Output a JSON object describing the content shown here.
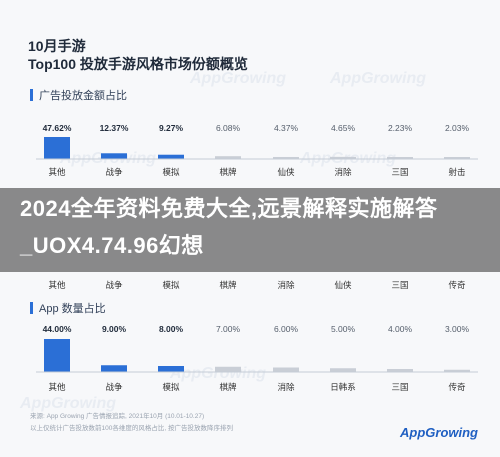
{
  "header": {
    "title_line1": "10月手游",
    "title_line2": "Top100 投放手游风格市场份额概览"
  },
  "watermark": "AppGrowing",
  "colors": {
    "accent": "#2b6fd6",
    "muted": "#c9ced6",
    "overlay": "#464646"
  },
  "overlay_text": "2024全年资料免费大全,远景解释实施解答_UOX4.74.96幻想",
  "chart_data": [
    {
      "type": "bar",
      "title": "广告投放金额占比",
      "categories": [
        "其他",
        "战争",
        "模拟",
        "棋牌",
        "仙侠",
        "消除",
        "三国",
        "射击"
      ],
      "values": [
        47.62,
        12.37,
        9.27,
        6.08,
        4.37,
        4.65,
        2.23,
        2.03
      ],
      "labels": [
        "47.62%",
        "12.37%",
        "9.27%",
        "6.08%",
        "4.37%",
        "4.65%",
        "2.23%",
        "2.03%"
      ]
    },
    {
      "type": "bar",
      "title": "",
      "categories": [
        "其他",
        "战争",
        "模拟",
        "棋牌",
        "消除",
        "仙侠",
        "三国",
        "传奇"
      ],
      "values": [
        null,
        null,
        null,
        null,
        null,
        null,
        null,
        null
      ],
      "labels": []
    },
    {
      "type": "bar",
      "title": "App 数量占比",
      "categories": [
        "其他",
        "战争",
        "模拟",
        "棋牌",
        "消除",
        "日韩系",
        "三国",
        "传奇"
      ],
      "values": [
        44.0,
        9.0,
        8.0,
        7.0,
        6.0,
        5.0,
        4.0,
        3.0
      ],
      "labels": [
        "44.00%",
        "9.00%",
        "8.00%",
        "7.00%",
        "6.00%",
        "5.00%",
        "4.00%",
        "3.00%"
      ]
    }
  ],
  "footer": {
    "line1": "来源: App Growing 广告情报追踪, 2021年10月 (10.01-10.27)",
    "line2": "以上仅统计广告投放数前100各维度的风格占比, 按广告投放数降序排列"
  },
  "brand": "AppGrowing"
}
